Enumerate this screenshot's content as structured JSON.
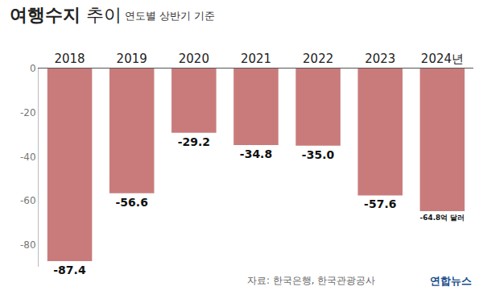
{
  "chart_data": {
    "type": "bar",
    "title": "여행수지 추이",
    "subtitle": "연도별 상반기 기준",
    "categories": [
      "2018",
      "2019",
      "2020",
      "2021",
      "2022",
      "2023",
      "2024년"
    ],
    "values": [
      -87.4,
      -56.6,
      -29.2,
      -34.8,
      -35.0,
      -57.6,
      -64.8
    ],
    "value_labels": [
      "-87.4",
      "-56.6",
      "-29.2",
      "-34.8",
      "-35.0",
      "-57.6",
      "-64.8억 달러"
    ],
    "data_labels": true,
    "color": "#c97b7b",
    "ylim": [
      -90,
      0
    ],
    "yticks": [
      0,
      -20,
      -40,
      -60,
      -80
    ],
    "grid": false,
    "annotations": [
      "자료: 한국은행, 한국관광공사",
      "연합뉴스"
    ]
  }
}
